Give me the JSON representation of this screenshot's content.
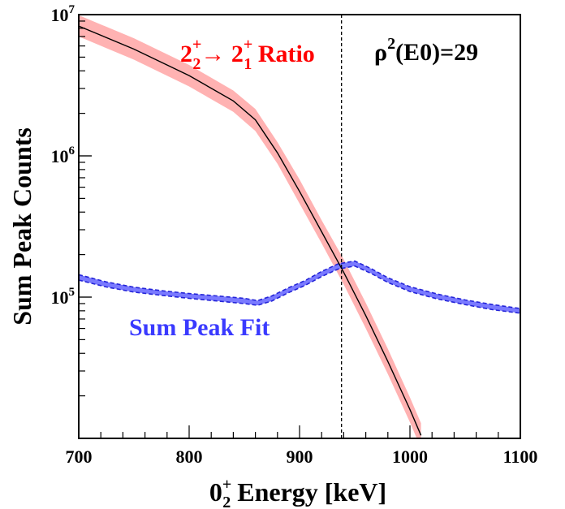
{
  "chart_data": {
    "type": "line",
    "xlabel_main": "0",
    "xlabel_sup": "+",
    "xlabel_sub": "2",
    "xlabel_rest": " Energy [keV]",
    "ylabel": "Sum Peak Counts",
    "xlim": [
      700,
      1100
    ],
    "ylim": [
      10000,
      10000000
    ],
    "y_scale": "log",
    "x_ticks": [
      700,
      800,
      900,
      1000,
      1100
    ],
    "x_tick_labels": [
      "700",
      "800",
      "900",
      "1000",
      "1100"
    ],
    "y_major_ticks": [
      {
        "value": 100000,
        "base": "10",
        "exp": "5"
      },
      {
        "value": 1000000,
        "base": "10",
        "exp": "6"
      },
      {
        "value": 10000000,
        "base": "10",
        "exp": "7"
      }
    ],
    "grid": false,
    "vertical_line_x": 938,
    "annotations": {
      "rho": {
        "prefix": "ρ",
        "sup": "2",
        "rest": "(E0)=29"
      },
      "ratio": {
        "a": "2",
        "a_sup": "+",
        "a_sub": "2",
        "arrow": "→",
        "b": " 2",
        "b_sup": "+",
        "b_sub": "1",
        "rest": " Ratio"
      },
      "fit": "Sum Peak Fit"
    },
    "colors": {
      "ratio_band": "#ffb2b2",
      "ratio_line": "#000000",
      "ratio_text": "#ff0000",
      "fit_band": "#7a7aff",
      "fit_text": "#3a3aff"
    },
    "series": [
      {
        "name": "2₂⁺→2₁⁺ Ratio",
        "x": [
          700,
          750,
          800,
          840,
          860,
          880,
          900,
          920,
          940,
          960,
          980,
          1000,
          1010
        ],
        "y": [
          8300000,
          5700000,
          3700000,
          2450000,
          1800000,
          1050000,
          560000,
          290000,
          150000,
          74000,
          35000,
          16000,
          10500
        ],
        "lower": [
          7000000,
          4800000,
          3100000,
          2050000,
          1500000,
          880000,
          460000,
          240000,
          123000,
          60000,
          28500,
          13000,
          8500
        ],
        "upper": [
          9900000,
          6800000,
          4400000,
          2900000,
          2150000,
          1250000,
          680000,
          350000,
          185000,
          91000,
          43000,
          19500,
          12800
        ]
      },
      {
        "name": "Sum Peak Fit",
        "x": [
          700,
          725,
          750,
          775,
          800,
          825,
          850,
          862,
          875,
          890,
          905,
          920,
          935,
          950,
          965,
          980,
          1000,
          1025,
          1050,
          1075,
          1100
        ],
        "y": [
          138000,
          123000,
          113000,
          107000,
          102000,
          98000,
          94000,
          91000,
          98000,
          112000,
          126000,
          146000,
          165000,
          173000,
          153000,
          132000,
          114000,
          101000,
          92000,
          85000,
          80000
        ],
        "lower": [
          132000,
          118000,
          108500,
          103000,
          98000,
          94000,
          90000,
          87500,
          94000,
          107500,
          121000,
          140000,
          158000,
          166000,
          147000,
          127000,
          109500,
          97000,
          88500,
          81500,
          77000
        ],
        "upper": [
          144000,
          128000,
          117500,
          111000,
          106000,
          102000,
          98000,
          94500,
          102000,
          116500,
          131000,
          152000,
          172000,
          180000,
          159000,
          137000,
          118500,
          105000,
          95500,
          88500,
          83000
        ]
      }
    ]
  }
}
